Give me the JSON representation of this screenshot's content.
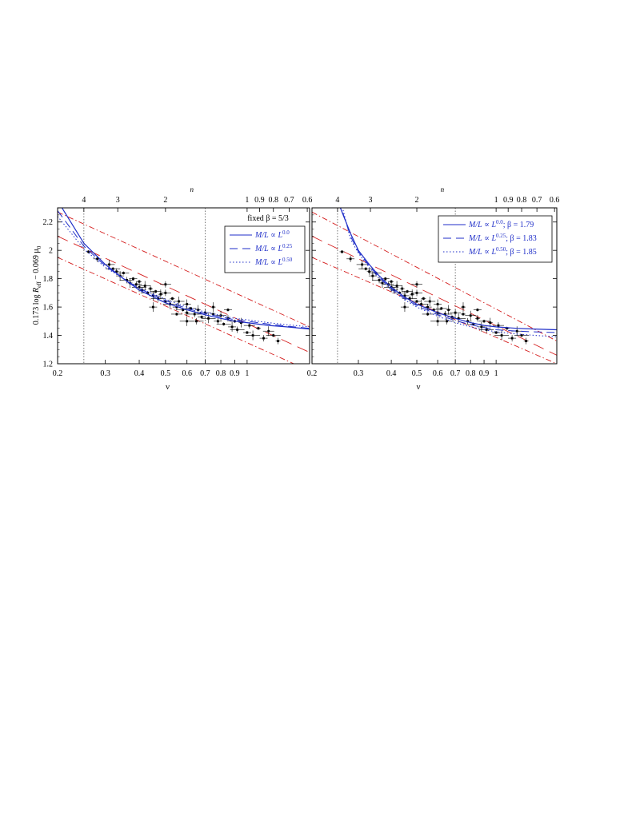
{
  "ylabel": "0.173 log R_eff − 0.069 μ_0",
  "ylabel_parts": {
    "a": "0.173 log ",
    "b": "R",
    "b_sub": "eff",
    "c": " − 0.069 μ",
    "c_sub": "0"
  },
  "chart_data": [
    {
      "type": "scatter",
      "panel": "left",
      "xlabel": "ν",
      "top_axis_label": "n",
      "xscale": "log",
      "xlim": [
        0.2,
        1.7
      ],
      "ylim": [
        1.2,
        2.3
      ],
      "x_ticks": [
        0.2,
        0.3,
        0.4,
        0.5,
        0.6,
        0.7,
        0.8,
        0.9,
        1
      ],
      "x_tick_labels": [
        "0.2",
        "0.3",
        "0.4",
        "0.5",
        "0.6",
        "0.7",
        "0.8",
        "0.9",
        "1"
      ],
      "y_ticks": [
        1.2,
        1.4,
        1.6,
        1.8,
        2.0,
        2.2
      ],
      "y_tick_labels": [
        "1.2",
        "1.4",
        "1.6",
        "1.8",
        "2",
        "2.2"
      ],
      "top_ticks_n": [
        4,
        3,
        2,
        1,
        0.9,
        0.8,
        0.7,
        0.6
      ],
      "top_tick_labels": [
        "4",
        "3",
        "2",
        "1",
        "0.9",
        "0.8",
        "0.7",
        "0.6"
      ],
      "vlines": [
        0.25,
        0.7
      ],
      "legend_title": "fixed β = 5/3",
      "legend_position": "top-right",
      "legend": [
        {
          "prefix": "M/L ∝ L",
          "sup": "0.0",
          "suffix": "",
          "style": "solid"
        },
        {
          "prefix": "M/L ∝ L",
          "sup": "0.25",
          "suffix": "",
          "style": "dashed"
        },
        {
          "prefix": "M/L ∝ L",
          "sup": "0.50",
          "suffix": "",
          "style": "dotted"
        }
      ],
      "model_curves": [
        {
          "style": "solid",
          "points": [
            [
              0.2,
              2.35
            ],
            [
              0.25,
              2.05
            ],
            [
              0.3,
              1.9
            ],
            [
              0.35,
              1.8
            ],
            [
              0.4,
              1.72
            ],
            [
              0.5,
              1.63
            ],
            [
              0.6,
              1.58
            ],
            [
              0.7,
              1.545
            ],
            [
              0.8,
              1.52
            ],
            [
              0.9,
              1.5
            ],
            [
              1.0,
              1.49
            ],
            [
              1.2,
              1.47
            ],
            [
              1.4,
              1.46
            ],
            [
              1.7,
              1.445
            ]
          ]
        },
        {
          "style": "dashed",
          "points": [
            [
              0.2,
              2.28
            ],
            [
              0.25,
              2.03
            ],
            [
              0.3,
              1.89
            ],
            [
              0.35,
              1.8
            ],
            [
              0.4,
              1.73
            ],
            [
              0.5,
              1.645
            ],
            [
              0.6,
              1.59
            ],
            [
              0.7,
              1.555
            ],
            [
              0.8,
              1.53
            ],
            [
              0.9,
              1.51
            ],
            [
              1.0,
              1.5
            ],
            [
              1.2,
              1.48
            ],
            [
              1.4,
              1.465
            ],
            [
              1.7,
              1.45
            ]
          ]
        },
        {
          "style": "dotted",
          "points": [
            [
              0.2,
              2.24
            ],
            [
              0.25,
              2.01
            ],
            [
              0.3,
              1.88
            ],
            [
              0.35,
              1.8
            ],
            [
              0.4,
              1.735
            ],
            [
              0.5,
              1.655
            ],
            [
              0.6,
              1.6
            ],
            [
              0.7,
              1.565
            ],
            [
              0.8,
              1.54
            ],
            [
              0.9,
              1.52
            ],
            [
              1.0,
              1.51
            ],
            [
              1.2,
              1.49
            ],
            [
              1.4,
              1.475
            ],
            [
              1.7,
              1.46
            ]
          ]
        }
      ],
      "red_lines": [
        {
          "style": "dashdot",
          "points": [
            [
              0.2,
              2.27
            ],
            [
              1.7,
              1.46
            ]
          ]
        },
        {
          "style": "longdash",
          "points": [
            [
              0.2,
              2.1
            ],
            [
              1.7,
              1.28
            ]
          ]
        },
        {
          "style": "dashdot",
          "points": [
            [
              0.2,
              1.95
            ],
            [
              1.7,
              1.15
            ]
          ]
        }
      ],
      "points": [
        [
          0.26,
          1.99
        ],
        [
          0.28,
          1.94
        ],
        [
          0.31,
          1.9
        ],
        [
          0.32,
          1.87
        ],
        [
          0.33,
          1.85
        ],
        [
          0.34,
          1.82
        ],
        [
          0.35,
          1.84
        ],
        [
          0.36,
          1.79
        ],
        [
          0.37,
          1.77
        ],
        [
          0.38,
          1.8
        ],
        [
          0.39,
          1.76
        ],
        [
          0.4,
          1.74
        ],
        [
          0.4,
          1.78
        ],
        [
          0.41,
          1.72
        ],
        [
          0.42,
          1.75
        ],
        [
          0.43,
          1.7
        ],
        [
          0.44,
          1.73
        ],
        [
          0.45,
          1.68
        ],
        [
          0.46,
          1.71
        ],
        [
          0.47,
          1.66
        ],
        [
          0.48,
          1.69
        ],
        [
          0.5,
          1.64
        ],
        [
          0.5,
          1.7
        ],
        [
          0.52,
          1.62
        ],
        [
          0.53,
          1.66
        ],
        [
          0.55,
          1.6
        ],
        [
          0.56,
          1.64
        ],
        [
          0.58,
          1.58
        ],
        [
          0.6,
          1.56
        ],
        [
          0.6,
          1.62
        ],
        [
          0.62,
          1.59
        ],
        [
          0.64,
          1.55
        ],
        [
          0.66,
          1.58
        ],
        [
          0.68,
          1.53
        ],
        [
          0.7,
          1.56
        ],
        [
          0.72,
          1.52
        ],
        [
          0.75,
          1.55
        ],
        [
          0.78,
          1.5
        ],
        [
          0.8,
          1.54
        ],
        [
          0.82,
          1.48
        ],
        [
          0.85,
          1.52
        ],
        [
          0.88,
          1.46
        ],
        [
          0.9,
          1.5
        ],
        [
          0.92,
          1.44
        ],
        [
          0.95,
          1.49
        ],
        [
          1.0,
          1.42
        ],
        [
          1.02,
          1.47
        ],
        [
          1.05,
          1.4
        ],
        [
          1.1,
          1.45
        ],
        [
          1.15,
          1.38
        ],
        [
          1.2,
          1.43
        ],
        [
          1.25,
          1.4
        ],
        [
          1.3,
          1.36
        ],
        [
          0.45,
          1.6
        ],
        [
          0.55,
          1.55
        ],
        [
          0.65,
          1.5
        ],
        [
          0.75,
          1.6
        ],
        [
          0.85,
          1.58
        ],
        [
          0.5,
          1.76
        ],
        [
          0.6,
          1.5
        ]
      ]
    },
    {
      "type": "scatter",
      "panel": "right",
      "xlabel": "ν",
      "top_axis_label": "n",
      "xscale": "log",
      "xlim": [
        0.2,
        1.7
      ],
      "ylim": [
        1.2,
        2.3
      ],
      "x_ticks": [
        0.2,
        0.3,
        0.4,
        0.5,
        0.6,
        0.7,
        0.8,
        0.9,
        1
      ],
      "x_tick_labels": [
        "0.2",
        "0.3",
        "0.4",
        "0.5",
        "0.6",
        "0.7",
        "0.8",
        "0.9",
        "1"
      ],
      "y_ticks": [
        1.2,
        1.4,
        1.6,
        1.8,
        2.0,
        2.2
      ],
      "top_ticks_n": [
        4,
        3,
        2,
        1,
        0.9,
        0.8,
        0.7,
        0.6
      ],
      "top_tick_labels": [
        "4",
        "3",
        "2",
        "1",
        "0.9",
        "0.8",
        "0.7",
        "0.6"
      ],
      "vlines": [
        0.25,
        0.7
      ],
      "legend_title": "",
      "legend_position": "top-right",
      "legend": [
        {
          "prefix": "M/L ∝ L",
          "sup": "0.0",
          "suffix": "; β = 1.79",
          "style": "solid"
        },
        {
          "prefix": "M/L ∝ L",
          "sup": "0.25",
          "suffix": "; β = 1.83",
          "style": "dashed"
        },
        {
          "prefix": "M/L ∝ L",
          "sup": "0.50",
          "suffix": "; β = 1.85",
          "style": "dotted"
        }
      ],
      "model_curves": [
        {
          "style": "solid",
          "points": [
            [
              0.25,
              2.35
            ],
            [
              0.28,
              2.12
            ],
            [
              0.3,
              2.0
            ],
            [
              0.33,
              1.9
            ],
            [
              0.36,
              1.82
            ],
            [
              0.4,
              1.74
            ],
            [
              0.45,
              1.67
            ],
            [
              0.5,
              1.62
            ],
            [
              0.6,
              1.56
            ],
            [
              0.7,
              1.52
            ],
            [
              0.8,
              1.49
            ],
            [
              0.9,
              1.47
            ],
            [
              1.0,
              1.46
            ],
            [
              1.2,
              1.45
            ],
            [
              1.4,
              1.445
            ],
            [
              1.7,
              1.44
            ]
          ]
        },
        {
          "style": "dashed",
          "points": [
            [
              0.253,
              2.35
            ],
            [
              0.28,
              2.1
            ],
            [
              0.3,
              1.99
            ],
            [
              0.33,
              1.89
            ],
            [
              0.36,
              1.81
            ],
            [
              0.4,
              1.73
            ],
            [
              0.45,
              1.66
            ],
            [
              0.5,
              1.61
            ],
            [
              0.6,
              1.545
            ],
            [
              0.7,
              1.505
            ],
            [
              0.8,
              1.475
            ],
            [
              0.9,
              1.455
            ],
            [
              1.0,
              1.44
            ],
            [
              1.2,
              1.43
            ],
            [
              1.4,
              1.425
            ],
            [
              1.7,
              1.42
            ]
          ]
        },
        {
          "style": "dotted",
          "points": [
            [
              0.257,
              2.35
            ],
            [
              0.28,
              2.08
            ],
            [
              0.3,
              1.98
            ],
            [
              0.33,
              1.88
            ],
            [
              0.36,
              1.8
            ],
            [
              0.4,
              1.72
            ],
            [
              0.45,
              1.65
            ],
            [
              0.5,
              1.6
            ],
            [
              0.6,
              1.535
            ],
            [
              0.7,
              1.49
            ],
            [
              0.8,
              1.46
            ],
            [
              0.9,
              1.44
            ],
            [
              1.0,
              1.425
            ],
            [
              1.2,
              1.41
            ],
            [
              1.4,
              1.4
            ],
            [
              1.7,
              1.39
            ]
          ]
        }
      ],
      "red_lines": [
        {
          "style": "dashdot",
          "points": [
            [
              0.2,
              2.27
            ],
            [
              1.7,
              1.36
            ]
          ]
        },
        {
          "style": "longdash",
          "points": [
            [
              0.2,
              2.1
            ],
            [
              1.7,
              1.26
            ]
          ]
        },
        {
          "style": "dashdot",
          "points": [
            [
              0.2,
              1.95
            ],
            [
              1.7,
              1.2
            ]
          ]
        }
      ],
      "points": [
        [
          0.26,
          1.99
        ],
        [
          0.28,
          1.94
        ],
        [
          0.31,
          1.9
        ],
        [
          0.32,
          1.87
        ],
        [
          0.33,
          1.85
        ],
        [
          0.34,
          1.82
        ],
        [
          0.35,
          1.84
        ],
        [
          0.36,
          1.79
        ],
        [
          0.37,
          1.77
        ],
        [
          0.38,
          1.8
        ],
        [
          0.39,
          1.76
        ],
        [
          0.4,
          1.74
        ],
        [
          0.4,
          1.78
        ],
        [
          0.41,
          1.72
        ],
        [
          0.42,
          1.75
        ],
        [
          0.43,
          1.7
        ],
        [
          0.44,
          1.73
        ],
        [
          0.45,
          1.68
        ],
        [
          0.46,
          1.71
        ],
        [
          0.47,
          1.66
        ],
        [
          0.48,
          1.69
        ],
        [
          0.5,
          1.64
        ],
        [
          0.5,
          1.7
        ],
        [
          0.52,
          1.62
        ],
        [
          0.53,
          1.66
        ],
        [
          0.55,
          1.6
        ],
        [
          0.56,
          1.64
        ],
        [
          0.58,
          1.58
        ],
        [
          0.6,
          1.56
        ],
        [
          0.6,
          1.62
        ],
        [
          0.62,
          1.59
        ],
        [
          0.64,
          1.55
        ],
        [
          0.66,
          1.58
        ],
        [
          0.68,
          1.53
        ],
        [
          0.7,
          1.56
        ],
        [
          0.72,
          1.52
        ],
        [
          0.75,
          1.55
        ],
        [
          0.78,
          1.5
        ],
        [
          0.8,
          1.54
        ],
        [
          0.82,
          1.48
        ],
        [
          0.85,
          1.52
        ],
        [
          0.88,
          1.46
        ],
        [
          0.9,
          1.5
        ],
        [
          0.92,
          1.44
        ],
        [
          0.95,
          1.49
        ],
        [
          1.0,
          1.42
        ],
        [
          1.02,
          1.47
        ],
        [
          1.05,
          1.4
        ],
        [
          1.1,
          1.45
        ],
        [
          1.15,
          1.38
        ],
        [
          1.2,
          1.43
        ],
        [
          1.25,
          1.4
        ],
        [
          1.3,
          1.36
        ],
        [
          0.45,
          1.6
        ],
        [
          0.55,
          1.55
        ],
        [
          0.65,
          1.5
        ],
        [
          0.75,
          1.6
        ],
        [
          0.85,
          1.58
        ],
        [
          0.5,
          1.76
        ],
        [
          0.6,
          1.5
        ]
      ]
    }
  ],
  "colors": {
    "model": "#1f2ec8",
    "bounds": "#d41c1c",
    "points": "#000000",
    "guide": "#555555"
  }
}
